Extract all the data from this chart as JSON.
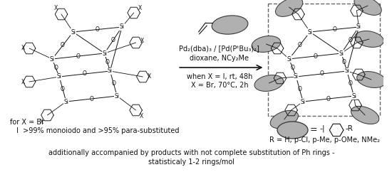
{
  "fig_width": 5.5,
  "fig_height": 2.42,
  "dpi": 100,
  "bg_color": "#ffffff",
  "reaction_conditions": [
    "Pd₂(dba)₃ / [Pd(PᵗBu₃)₂]",
    "dioxane, NCy₂Me",
    "when X = I, rt, 48h",
    "X = Br, 70°C, 2h"
  ],
  "bottom_left_text1": "for X = Br",
  "bottom_left_text2": "I  >99% monoiodo and >95% para-substituted",
  "R_group_text": "R = H, p-Cl, p-Me, p-OMe, NMe₂",
  "bottom_note1": "additionally accompanied by products with not complete substitution of Ph rings -",
  "bottom_note2": "statisticaly 1-2 rings/mol",
  "font_size_cond": 7,
  "font_size_bottom": 7,
  "font_size_R": 7,
  "font_size_note": 7,
  "ellipse_fc": "#b0b0b0",
  "ellipse_ec": "#333333",
  "line_color": "#111111",
  "text_color": "#111111"
}
